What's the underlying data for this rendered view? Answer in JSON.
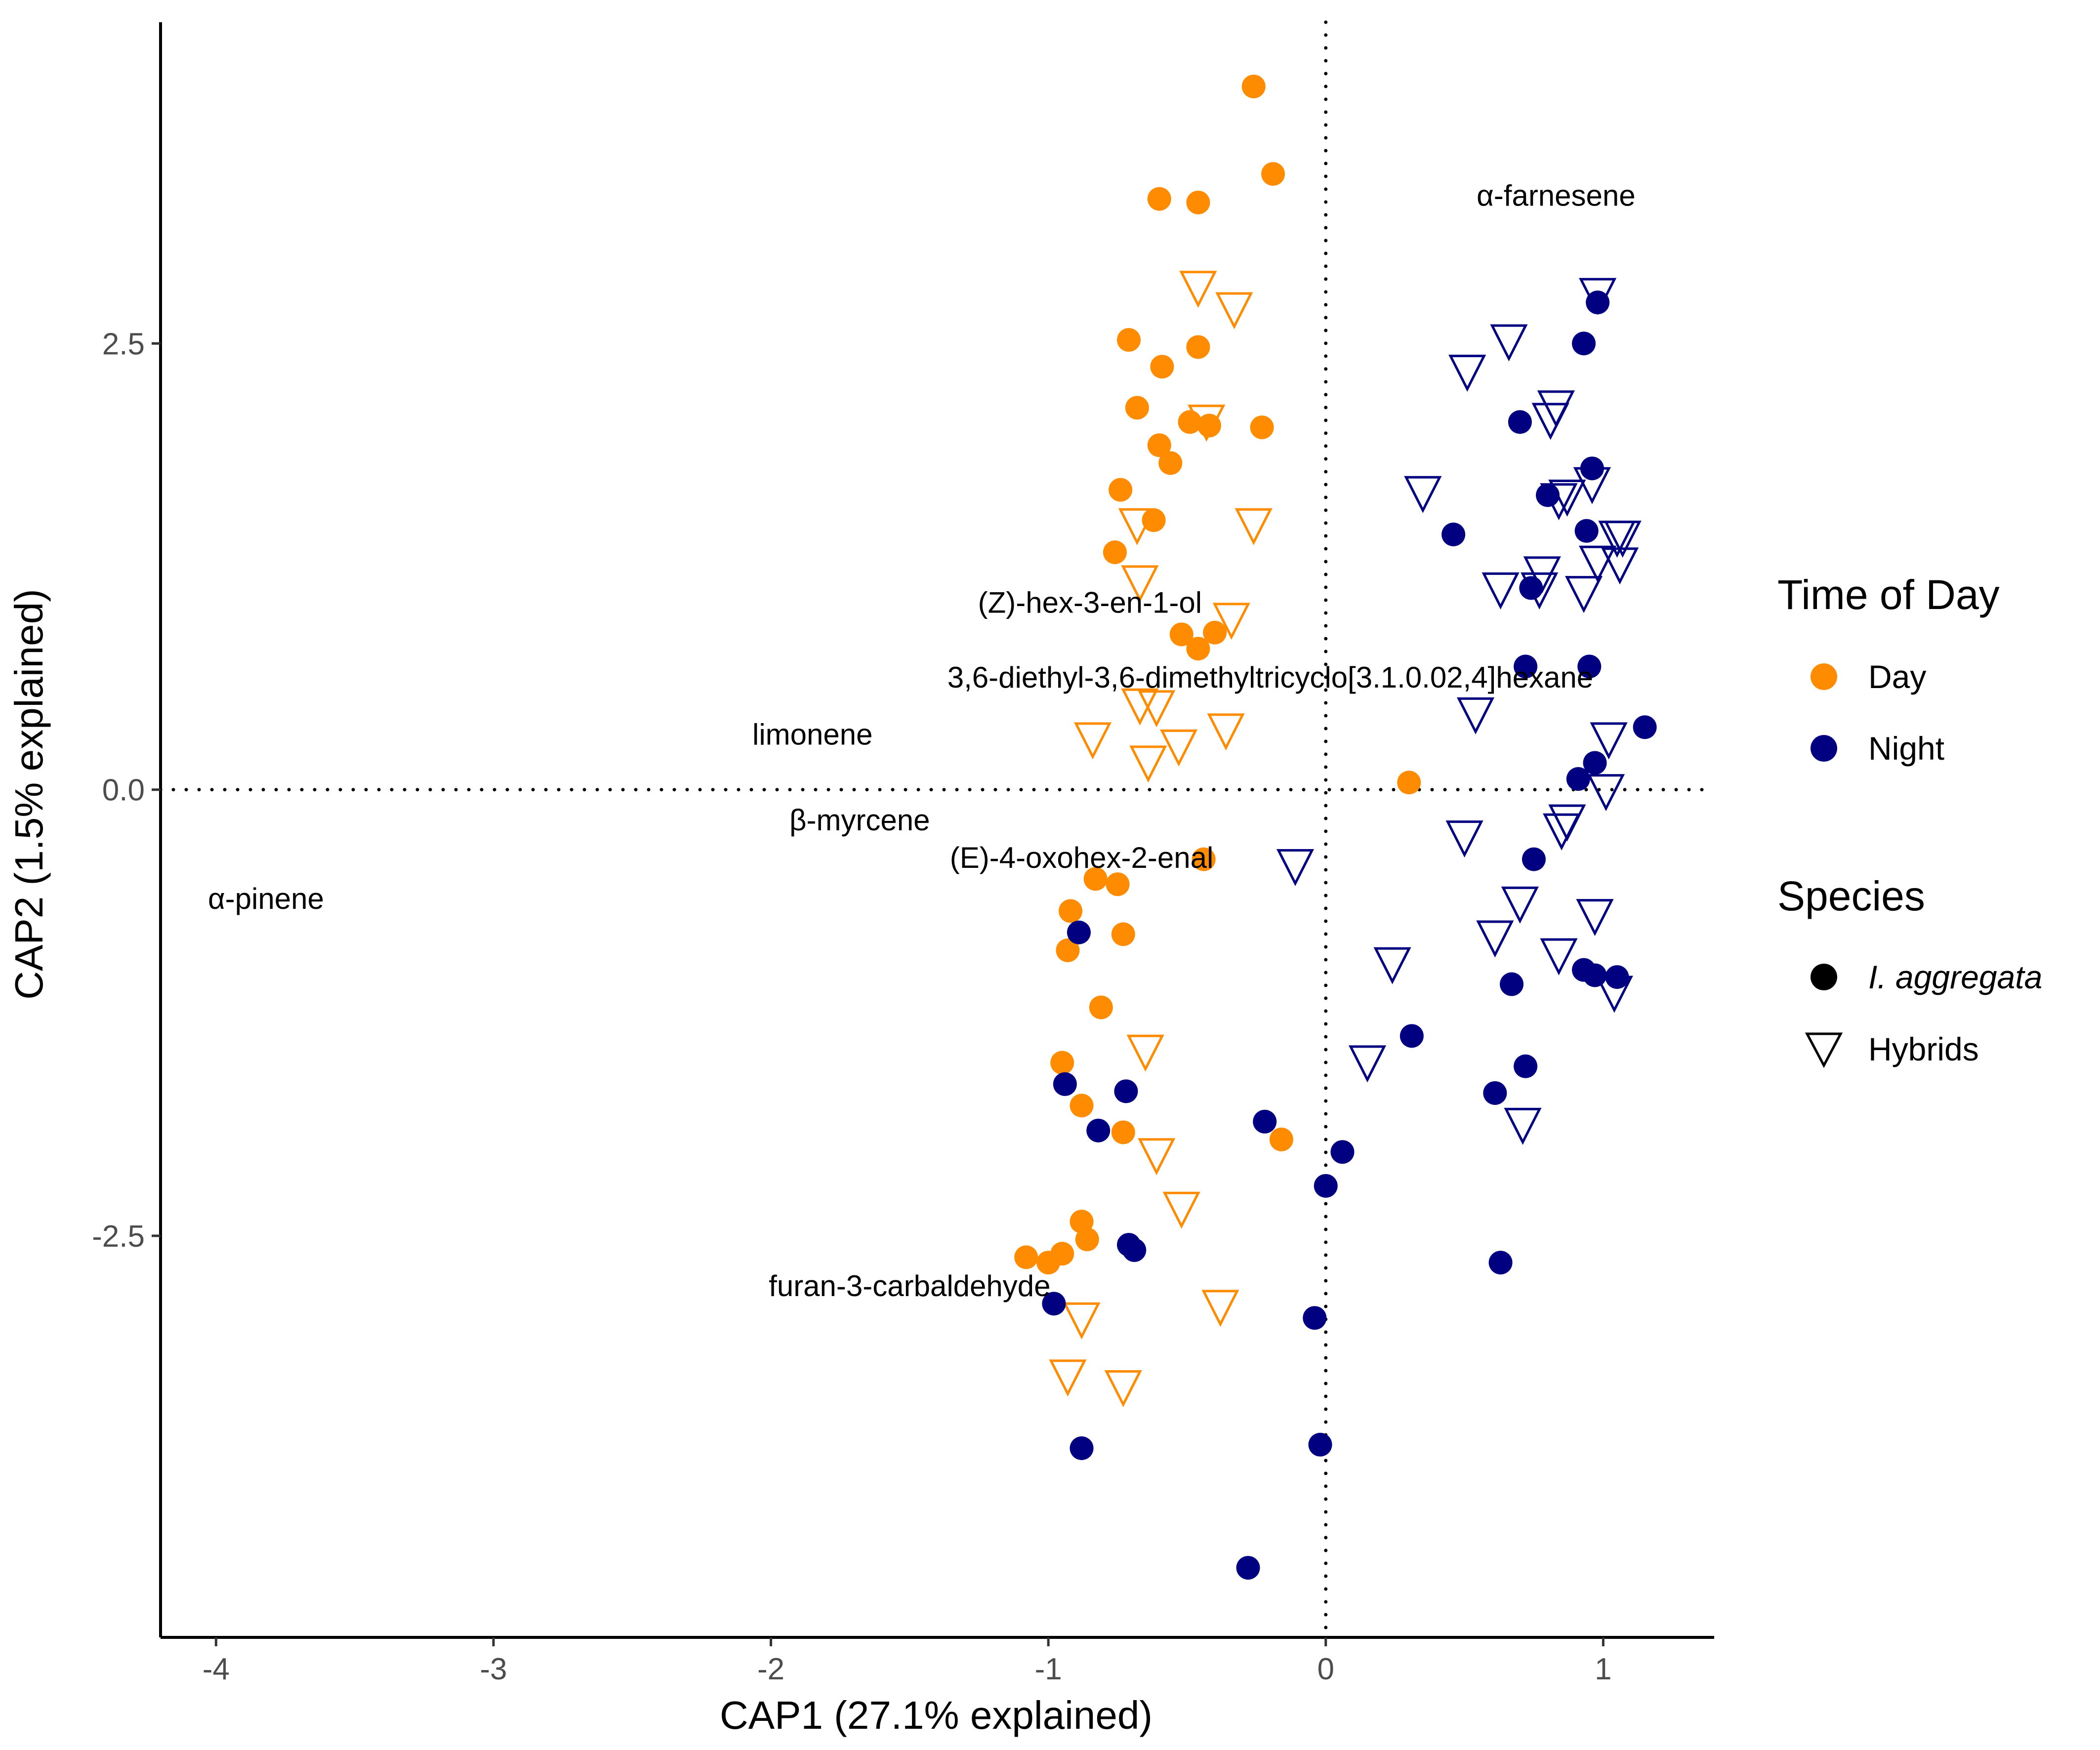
{
  "chart_data": {
    "type": "scatter",
    "xlabel": "CAP1 (27.1% explained)",
    "ylabel": "CAP2 (1.5% explained)",
    "xlim": [
      -4.2,
      1.4
    ],
    "ylim": [
      -4.75,
      4.3
    ],
    "xticks": [
      -4,
      -3,
      -2,
      -1,
      0,
      1
    ],
    "xtick_labels": [
      "-4",
      "-3",
      "-2",
      "-1",
      "0",
      "1"
    ],
    "yticks": [
      -2.5,
      0,
      2.5
    ],
    "ytick_labels": [
      "-2.5",
      "0.0",
      "2.5"
    ],
    "grid": false,
    "reference_lines": {
      "x": 0,
      "y": 0,
      "style": "dotted"
    },
    "colors": {
      "Day": "#ff8c00",
      "Night": "#000080"
    },
    "legend": {
      "position": "right",
      "color_title": "Time of Day",
      "color_entries": [
        "Day",
        "Night"
      ],
      "shape_title": "Species",
      "shape_entries": [
        "I. aggregata",
        "Hybrids"
      ]
    },
    "annotations": [
      {
        "text": "α-farnesene",
        "x": 0.83,
        "y": 3.33
      },
      {
        "text": "(Z)-hex-3-en-1-ol",
        "x": -0.85,
        "y": 1.05
      },
      {
        "text": "3,6-diethyl-3,6-dimethyltricyclo[3.1.0.02,4]hexane",
        "x": -0.2,
        "y": 0.63
      },
      {
        "text": "limonene",
        "x": -1.85,
        "y": 0.31
      },
      {
        "text": "β-myrcene",
        "x": -1.68,
        "y": -0.17
      },
      {
        "text": "(E)-4-oxohex-2-enal",
        "x": -0.88,
        "y": -0.38
      },
      {
        "text": "α-pinene",
        "x": -3.82,
        "y": -0.61
      },
      {
        "text": "furan-3-carbaldehyde",
        "x": -1.5,
        "y": -2.78
      }
    ],
    "series": [
      {
        "name": "Day",
        "species": "I. aggregata",
        "shape": "circle",
        "points": [
          [
            -0.26,
            3.94
          ],
          [
            -0.19,
            3.45
          ],
          [
            -0.6,
            3.31
          ],
          [
            -0.46,
            3.29
          ],
          [
            -0.71,
            2.52
          ],
          [
            -0.59,
            2.37
          ],
          [
            -0.46,
            2.48
          ],
          [
            -0.68,
            2.14
          ],
          [
            -0.49,
            2.06
          ],
          [
            -0.42,
            2.04
          ],
          [
            -0.23,
            2.03
          ],
          [
            -0.6,
            1.93
          ],
          [
            -0.56,
            1.83
          ],
          [
            -0.74,
            1.68
          ],
          [
            -0.62,
            1.51
          ],
          [
            -0.76,
            1.33
          ],
          [
            -0.52,
            0.87
          ],
          [
            -0.4,
            0.88
          ],
          [
            -0.46,
            0.79
          ],
          [
            0.3,
            0.04
          ],
          [
            -0.44,
            -0.39
          ],
          [
            -0.83,
            -0.5
          ],
          [
            -0.75,
            -0.53
          ],
          [
            -0.92,
            -0.68
          ],
          [
            -0.73,
            -0.81
          ],
          [
            -0.93,
            -0.9
          ],
          [
            -0.81,
            -1.22
          ],
          [
            -0.95,
            -1.53
          ],
          [
            -0.88,
            -1.77
          ],
          [
            -0.73,
            -1.92
          ],
          [
            -0.16,
            -1.96
          ],
          [
            -0.88,
            -2.42
          ],
          [
            -0.86,
            -2.52
          ],
          [
            -0.95,
            -2.6
          ],
          [
            -1.08,
            -2.62
          ],
          [
            -1.0,
            -2.65
          ]
        ]
      },
      {
        "name": "Day",
        "species": "Hybrids",
        "shape": "triangle-down",
        "points": [
          [
            -0.46,
            2.82
          ],
          [
            -0.33,
            2.7
          ],
          [
            -0.43,
            2.07
          ],
          [
            -0.68,
            1.49
          ],
          [
            -0.26,
            1.49
          ],
          [
            -0.67,
            1.17
          ],
          [
            -0.34,
            0.96
          ],
          [
            -0.67,
            0.48
          ],
          [
            -0.61,
            0.47
          ],
          [
            -0.84,
            0.29
          ],
          [
            -0.53,
            0.25
          ],
          [
            -0.36,
            0.34
          ],
          [
            -0.64,
            0.16
          ],
          [
            -0.65,
            -1.46
          ],
          [
            -0.61,
            -2.04
          ],
          [
            -0.52,
            -2.34
          ],
          [
            -0.38,
            -2.89
          ],
          [
            -0.88,
            -2.96
          ],
          [
            -0.93,
            -3.28
          ],
          [
            -0.73,
            -3.34
          ]
        ]
      },
      {
        "name": "Night",
        "species": "I. aggregata",
        "shape": "circle",
        "points": [
          [
            0.98,
            2.73
          ],
          [
            0.93,
            2.5
          ],
          [
            0.7,
            2.06
          ],
          [
            0.96,
            1.8
          ],
          [
            0.8,
            1.65
          ],
          [
            0.46,
            1.43
          ],
          [
            0.94,
            1.45
          ],
          [
            0.74,
            1.13
          ],
          [
            0.72,
            0.69
          ],
          [
            0.95,
            0.69
          ],
          [
            1.15,
            0.35
          ],
          [
            0.91,
            0.06
          ],
          [
            0.97,
            0.15
          ],
          [
            0.75,
            -0.39
          ],
          [
            -0.89,
            -0.8
          ],
          [
            0.67,
            -1.09
          ],
          [
            0.93,
            -1.01
          ],
          [
            0.97,
            -1.04
          ],
          [
            1.05,
            -1.05
          ],
          [
            0.31,
            -1.38
          ],
          [
            0.72,
            -1.55
          ],
          [
            -0.94,
            -1.65
          ],
          [
            -0.72,
            -1.69
          ],
          [
            0.61,
            -1.7
          ],
          [
            -0.82,
            -1.91
          ],
          [
            -0.22,
            -1.86
          ],
          [
            0.06,
            -2.03
          ],
          [
            0.0,
            -2.22
          ],
          [
            -0.71,
            -2.55
          ],
          [
            -0.69,
            -2.58
          ],
          [
            0.63,
            -2.65
          ],
          [
            -0.98,
            -2.88
          ],
          [
            -0.04,
            -2.96
          ],
          [
            -0.88,
            -3.69
          ],
          [
            -0.02,
            -3.67
          ],
          [
            -0.28,
            -4.36
          ]
        ]
      },
      {
        "name": "Night",
        "species": "Hybrids",
        "shape": "triangle-down",
        "points": [
          [
            0.98,
            2.78
          ],
          [
            0.66,
            2.52
          ],
          [
            0.51,
            2.35
          ],
          [
            0.83,
            2.15
          ],
          [
            0.81,
            2.08
          ],
          [
            0.35,
            1.67
          ],
          [
            0.96,
            1.72
          ],
          [
            0.87,
            1.65
          ],
          [
            0.84,
            1.63
          ],
          [
            1.05,
            1.42
          ],
          [
            1.07,
            1.42
          ],
          [
            0.63,
            1.13
          ],
          [
            0.78,
            1.22
          ],
          [
            0.77,
            1.13
          ],
          [
            0.93,
            1.11
          ],
          [
            0.98,
            1.28
          ],
          [
            1.06,
            1.27
          ],
          [
            0.54,
            0.43
          ],
          [
            1.02,
            0.29
          ],
          [
            1.01,
            0.0
          ],
          [
            0.87,
            -0.17
          ],
          [
            0.85,
            -0.22
          ],
          [
            0.5,
            -0.26
          ],
          [
            -0.11,
            -0.42
          ],
          [
            0.7,
            -0.63
          ],
          [
            0.97,
            -0.7
          ],
          [
            0.61,
            -0.82
          ],
          [
            0.84,
            -0.92
          ],
          [
            0.24,
            -0.97
          ],
          [
            1.04,
            -1.13
          ],
          [
            0.15,
            -1.52
          ],
          [
            0.71,
            -1.87
          ]
        ]
      }
    ]
  }
}
